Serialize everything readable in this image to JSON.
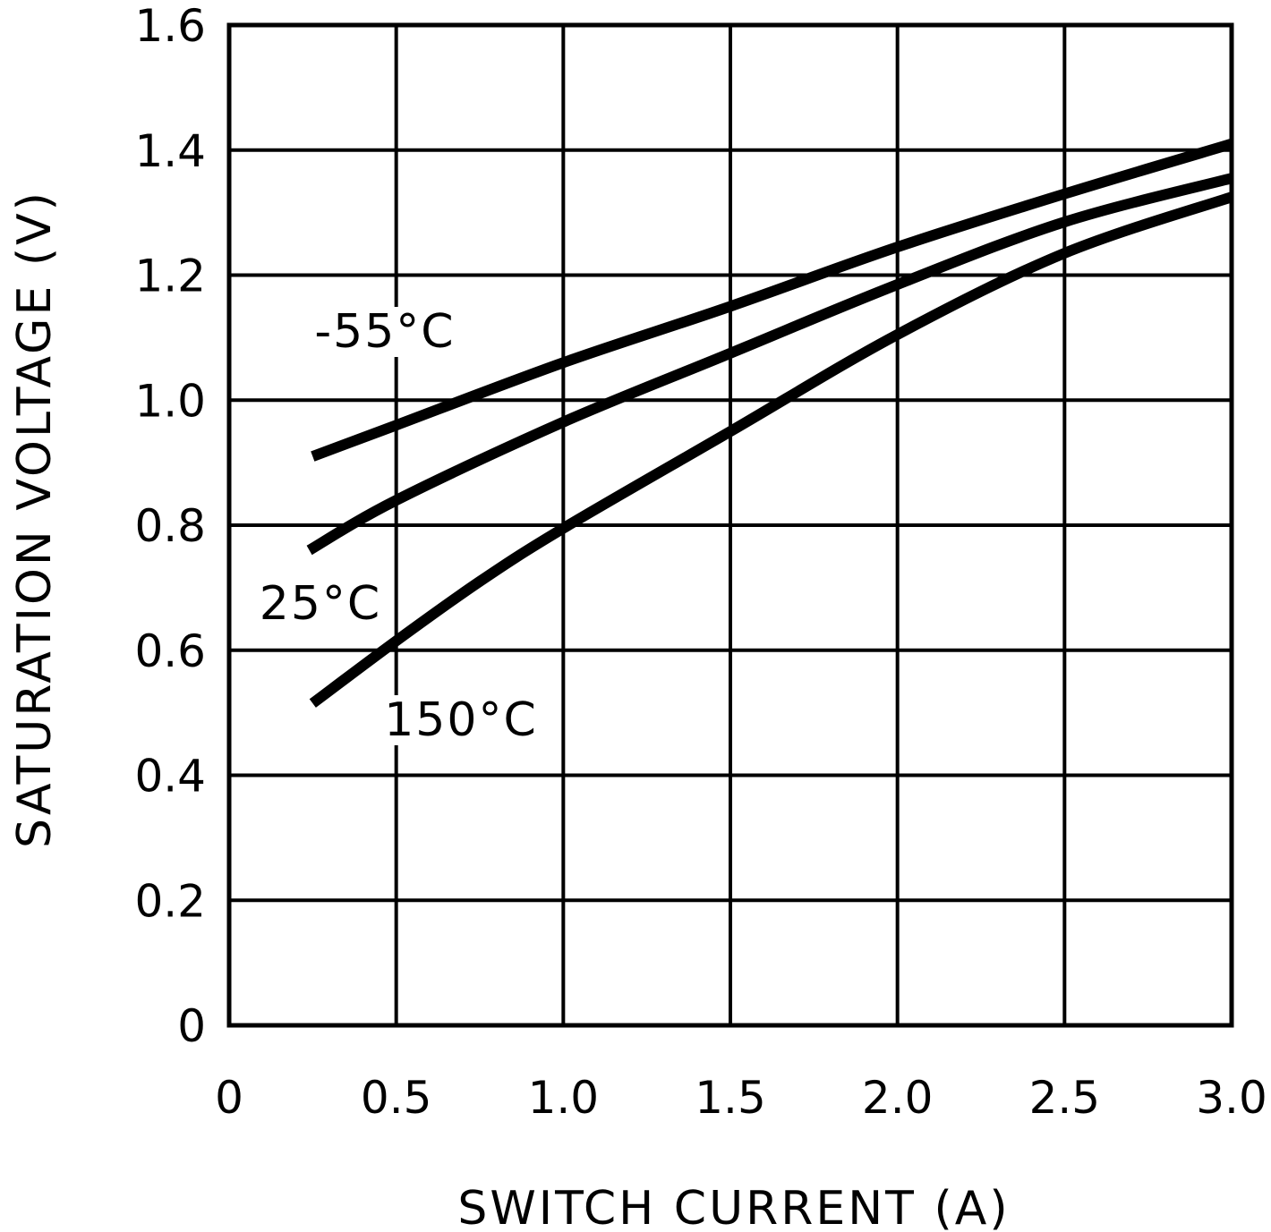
{
  "chart_data": {
    "type": "line",
    "xlabel": "SWITCH CURRENT (A)",
    "ylabel": "SATURATION VOLTAGE (V)",
    "xlim": [
      0,
      3.0
    ],
    "ylim": [
      0,
      1.6
    ],
    "grid": true,
    "x_ticks": [
      "0",
      "0.5",
      "1.0",
      "1.5",
      "2.0",
      "2.5",
      "3.0"
    ],
    "y_ticks": [
      "0",
      "0.2",
      "0.4",
      "0.6",
      "0.8",
      "1.0",
      "1.2",
      "1.4",
      "1.6"
    ],
    "series": [
      {
        "name": "-55°C",
        "points": [
          [
            0.25,
            0.91
          ],
          [
            0.5,
            0.96
          ],
          [
            1.0,
            1.06
          ],
          [
            1.5,
            1.15
          ],
          [
            2.0,
            1.245
          ],
          [
            2.5,
            1.33
          ],
          [
            3.0,
            1.41
          ]
        ]
      },
      {
        "name": "25°C",
        "points": [
          [
            0.24,
            0.76
          ],
          [
            0.5,
            0.84
          ],
          [
            1.0,
            0.965
          ],
          [
            1.5,
            1.075
          ],
          [
            2.0,
            1.185
          ],
          [
            2.5,
            1.285
          ],
          [
            3.0,
            1.355
          ]
        ]
      },
      {
        "name": "150°C",
        "points": [
          [
            0.25,
            0.515
          ],
          [
            0.5,
            0.615
          ],
          [
            0.75,
            0.71
          ],
          [
            1.0,
            0.795
          ],
          [
            1.5,
            0.95
          ],
          [
            2.0,
            1.105
          ],
          [
            2.5,
            1.235
          ],
          [
            3.0,
            1.325
          ]
        ]
      }
    ]
  }
}
